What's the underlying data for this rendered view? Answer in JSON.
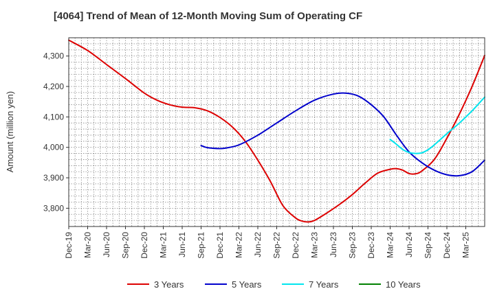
{
  "chart_data": {
    "type": "line",
    "title": "[4064]  Trend of Mean of 12-Month Moving Sum of Operating CF",
    "xlabel": "",
    "ylabel": "Amount (million yen)",
    "ylim": [
      3740,
      4360
    ],
    "yticks": [
      3800,
      3900,
      4000,
      4100,
      4200,
      4300
    ],
    "ytick_labels": [
      "3,800",
      "3,900",
      "4,000",
      "4,100",
      "4,200",
      "4,300"
    ],
    "x_index_range": [
      0,
      66
    ],
    "x_tick_labels": [
      "Dec-19",
      "Mar-20",
      "Jun-20",
      "Sep-20",
      "Dec-20",
      "Mar-21",
      "Jun-21",
      "Sep-21",
      "Dec-21",
      "Mar-22",
      "Jun-22",
      "Sep-22",
      "Dec-22",
      "Mar-23",
      "Jun-23",
      "Sep-23",
      "Dec-23",
      "Mar-24",
      "Jun-24",
      "Sep-24",
      "Dec-24",
      "Mar-25"
    ],
    "grid": true,
    "legend_position": "bottom",
    "series": [
      {
        "name": "3 Years",
        "color": "#dd0000",
        "points": [
          [
            0,
            4352
          ],
          [
            3,
            4318
          ],
          [
            6,
            4272
          ],
          [
            9,
            4226
          ],
          [
            12,
            4178
          ],
          [
            14,
            4155
          ],
          [
            16,
            4140
          ],
          [
            18,
            4132
          ],
          [
            20,
            4130
          ],
          [
            22,
            4120
          ],
          [
            24,
            4098
          ],
          [
            26,
            4066
          ],
          [
            28,
            4020
          ],
          [
            30,
            3958
          ],
          [
            32,
            3888
          ],
          [
            34,
            3808
          ],
          [
            36,
            3768
          ],
          [
            37,
            3758
          ],
          [
            38,
            3755
          ],
          [
            39,
            3760
          ],
          [
            41,
            3785
          ],
          [
            43,
            3813
          ],
          [
            45,
            3845
          ],
          [
            47,
            3882
          ],
          [
            49,
            3915
          ],
          [
            51,
            3928
          ],
          [
            52,
            3930
          ],
          [
            53,
            3925
          ],
          [
            54,
            3914
          ],
          [
            55,
            3913
          ],
          [
            56,
            3922
          ],
          [
            58,
            3960
          ],
          [
            60,
            4030
          ],
          [
            62,
            4110
          ],
          [
            64,
            4200
          ],
          [
            66,
            4302
          ]
        ]
      },
      {
        "name": "5 Years",
        "color": "#0000cc",
        "points": [
          [
            21,
            4006
          ],
          [
            22,
            3999
          ],
          [
            24,
            3996
          ],
          [
            25,
            3998
          ],
          [
            27,
            4008
          ],
          [
            30,
            4040
          ],
          [
            33,
            4080
          ],
          [
            36,
            4120
          ],
          [
            39,
            4155
          ],
          [
            42,
            4175
          ],
          [
            44,
            4178
          ],
          [
            46,
            4168
          ],
          [
            48,
            4140
          ],
          [
            50,
            4100
          ],
          [
            52,
            4040
          ],
          [
            54,
            3985
          ],
          [
            56,
            3950
          ],
          [
            58,
            3925
          ],
          [
            60,
            3910
          ],
          [
            62,
            3907
          ],
          [
            64,
            3920
          ],
          [
            66,
            3958
          ]
        ]
      },
      {
        "name": "7 Years",
        "color": "#00e5ee",
        "points": [
          [
            51,
            4026
          ],
          [
            52,
            4010
          ],
          [
            53,
            3993
          ],
          [
            54,
            3983
          ],
          [
            55,
            3980
          ],
          [
            56,
            3982
          ],
          [
            57,
            3992
          ],
          [
            58,
            4008
          ],
          [
            60,
            4045
          ],
          [
            62,
            4080
          ],
          [
            64,
            4120
          ],
          [
            66,
            4165
          ]
        ]
      },
      {
        "name": "10 Years",
        "color": "#008000",
        "points": []
      }
    ]
  }
}
